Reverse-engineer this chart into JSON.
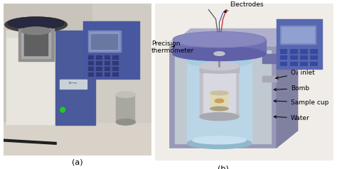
{
  "label_a": "(a)",
  "label_b": "(b)",
  "bg_color": "#ffffff",
  "labels": {
    "electrodes": "Electrodes",
    "precision_thermometer": "Precision\nthermometer",
    "o2_inlet": "O₂ inlet",
    "bomb": "Bomb",
    "sample_cup": "Sample cup",
    "water": "Water"
  },
  "photo_wall_color": "#c0bdb5",
  "photo_bench_color": "#d0cbc0",
  "photo_body_color": "#e8e5de",
  "photo_blue_color": "#5060a0",
  "photo_blue_dark": "#3a4a80",
  "diag_bg": "#e8e4dc",
  "diag_box_front": "#9898b8",
  "diag_box_top": "#a8a8c8",
  "diag_box_right": "#8888a8",
  "diag_inner_bg": "#b8c0c8",
  "diag_water_color": "#b8d8e8",
  "diag_water_dark": "#90b8cc",
  "diag_bomb_color": "#c8c8d0",
  "diag_bomb_light": "#e0e0e8",
  "diag_lid_color": "#7878b0",
  "diag_lid_top": "#9090c8",
  "diag_display_color": "#6878b0",
  "diag_display_screen": "#8898c8",
  "label_fontsize": 6.5,
  "caption_fontsize": 8
}
